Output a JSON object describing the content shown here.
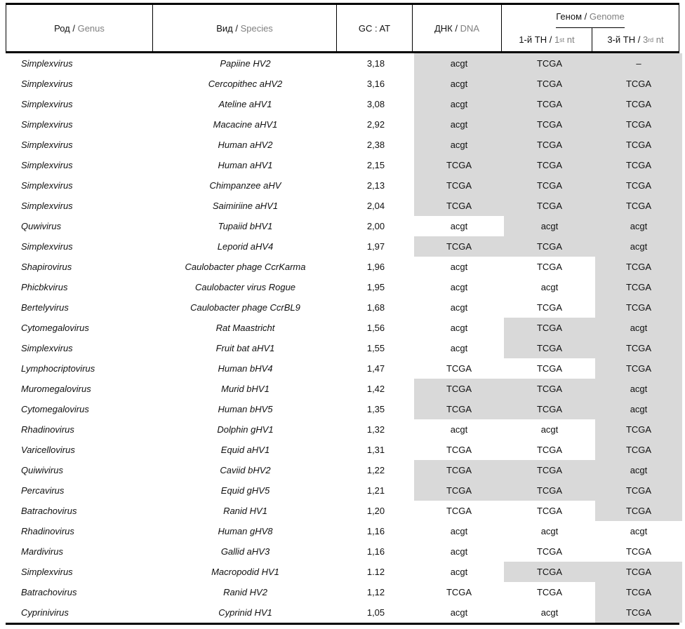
{
  "colors": {
    "shade": "#d9d9d9",
    "muted_text": "#808080",
    "text": "#111111"
  },
  "header": {
    "sep": " / ",
    "genus": {
      "ru": "Род",
      "en": "Genus"
    },
    "species": {
      "ru": "Вид",
      "en": "Species"
    },
    "gc_at": "GC : AT",
    "dna": {
      "ru": "ДНК",
      "en": "DNA"
    },
    "genome": {
      "ru": "Геном",
      "en": "Genome"
    },
    "nt1": {
      "ru": "1-й ТН",
      "en_num": "1",
      "en_sup": "st",
      "en_rest": " nt"
    },
    "nt3": {
      "ru": "3-й ТН",
      "en_num": "3",
      "en_sup": "rd",
      "en_rest": " nt"
    }
  },
  "rows": [
    {
      "genus": "Simplexvirus",
      "species": "Papiine HV2",
      "gc": "3,18",
      "dna": "acgt",
      "nt1": "TCGA",
      "nt3": "–",
      "shade": [
        true,
        true,
        true
      ]
    },
    {
      "genus": "Simplexvirus",
      "species": "Cercopithec aHV2",
      "gc": "3,16",
      "dna": "acgt",
      "nt1": "TCGA",
      "nt3": "TCGA",
      "shade": [
        true,
        true,
        true
      ]
    },
    {
      "genus": "Simplexvirus",
      "species": "Ateline aHV1",
      "gc": "3,08",
      "dna": "acgt",
      "nt1": "TCGA",
      "nt3": "TCGA",
      "shade": [
        true,
        true,
        true
      ]
    },
    {
      "genus": "Simplexvirus",
      "species": "Macacine aHV1",
      "gc": "2,92",
      "dna": "acgt",
      "nt1": "TCGA",
      "nt3": "TCGA",
      "shade": [
        true,
        true,
        true
      ]
    },
    {
      "genus": "Simplexvirus",
      "species": "Human aHV2",
      "gc": "2,38",
      "dna": "acgt",
      "nt1": "TCGA",
      "nt3": "TCGA",
      "shade": [
        true,
        true,
        true
      ]
    },
    {
      "genus": "Simplexvirus",
      "species": "Human aHV1",
      "gc": "2,15",
      "dna": "TCGA",
      "nt1": "TCGA",
      "nt3": "TCGA",
      "shade": [
        true,
        true,
        true
      ]
    },
    {
      "genus": "Simplexvirus",
      "species": "Chimpanzee aHV",
      "gc": "2,13",
      "dna": "TCGA",
      "nt1": "TCGA",
      "nt3": "TCGA",
      "shade": [
        true,
        true,
        true
      ]
    },
    {
      "genus": "Simplexvirus",
      "species": "Saimiriine aHV1",
      "gc": "2,04",
      "dna": "TCGA",
      "nt1": "TCGA",
      "nt3": "TCGA",
      "shade": [
        true,
        true,
        true
      ]
    },
    {
      "genus": "Quwivirus",
      "species": "Tupaiid bHV1",
      "gc": "2,00",
      "dna": "acgt",
      "nt1": "acgt",
      "nt3": "acgt",
      "shade": [
        false,
        true,
        true
      ]
    },
    {
      "genus": "Simplexvirus",
      "species": "Leporid aHV4",
      "gc": "1,97",
      "dna": "TCGA",
      "nt1": "TCGA",
      "nt3": "acgt",
      "shade": [
        true,
        true,
        true
      ]
    },
    {
      "genus": "Shapirovirus",
      "species": "Caulobacter phage CcrKarma",
      "gc": "1,96",
      "dna": "acgt",
      "nt1": "TCGA",
      "nt3": "TCGA",
      "shade": [
        false,
        false,
        true
      ]
    },
    {
      "genus": "Phicbkvirus",
      "species": "Caulobacter virus Rogue",
      "gc": "1,95",
      "dna": "acgt",
      "nt1": "acgt",
      "nt3": "TCGA",
      "shade": [
        false,
        false,
        true
      ]
    },
    {
      "genus": "Bertelyvirus",
      "species": "Caulobacter phage CcrBL9",
      "gc": "1,68",
      "dna": "acgt",
      "nt1": "TCGA",
      "nt3": "TCGA",
      "shade": [
        false,
        false,
        true
      ]
    },
    {
      "genus": "Cytomegalovirus",
      "species": "Rat Maastricht",
      "gc": "1,56",
      "dna": "acgt",
      "nt1": "TCGA",
      "nt3": "acgt",
      "shade": [
        false,
        true,
        true
      ]
    },
    {
      "genus": "Simplexvirus",
      "species": "Fruit bat aHV1",
      "gc": "1,55",
      "dna": "acgt",
      "nt1": "TCGA",
      "nt3": "TCGA",
      "shade": [
        false,
        true,
        true
      ]
    },
    {
      "genus": "Lymphocriptovirus",
      "species": "Human bHV4",
      "gc": "1,47",
      "dna": "TCGA",
      "nt1": "TCGA",
      "nt3": "TCGA",
      "shade": [
        false,
        false,
        true
      ]
    },
    {
      "genus": "Muromegalovirus",
      "species": "Murid bHV1",
      "gc": "1,42",
      "dna": "TCGA",
      "nt1": "TCGA",
      "nt3": "acgt",
      "shade": [
        true,
        true,
        true
      ]
    },
    {
      "genus": "Cytomegalovirus",
      "species": "Human bHV5",
      "gc": "1,35",
      "dna": "TCGA",
      "nt1": "TCGA",
      "nt3": "acgt",
      "shade": [
        true,
        true,
        true
      ]
    },
    {
      "genus": "Rhadinovirus",
      "species": "Dolphin gHV1",
      "gc": "1,32",
      "dna": "acgt",
      "nt1": "acgt",
      "nt3": "TCGA",
      "shade": [
        false,
        false,
        true
      ]
    },
    {
      "genus": "Varicellovirus",
      "species": "Equid aHV1",
      "gc": "1,31",
      "dna": "TCGA",
      "nt1": "TCGA",
      "nt3": "TCGA",
      "shade": [
        false,
        false,
        true
      ]
    },
    {
      "genus": "Quiwivirus",
      "species": "Caviid bHV2",
      "gc": "1,22",
      "dna": "TCGA",
      "nt1": "TCGA",
      "nt3": "acgt",
      "shade": [
        true,
        true,
        true
      ]
    },
    {
      "genus": "Percavirus",
      "species": "Equid gHV5",
      "gc": "1,21",
      "dna": "TCGA",
      "nt1": "TCGA",
      "nt3": "TCGA",
      "shade": [
        true,
        true,
        true
      ]
    },
    {
      "genus": "Batrachovirus",
      "species": "Ranid HV1",
      "gc": "1,20",
      "dna": "TCGA",
      "nt1": "TCGA",
      "nt3": "TCGA",
      "shade": [
        false,
        false,
        true
      ]
    },
    {
      "genus": "Rhadinovirus",
      "species": "Human gHV8",
      "gc": "1,16",
      "dna": "acgt",
      "nt1": "acgt",
      "nt3": "acgt",
      "shade": [
        false,
        false,
        false
      ]
    },
    {
      "genus": "Mardivirus",
      "species": "Gallid aHV3",
      "gc": "1,16",
      "dna": "acgt",
      "nt1": "TCGA",
      "nt3": "TCGA",
      "shade": [
        false,
        false,
        false
      ]
    },
    {
      "genus": "Simplexvirus",
      "species": "Macropodid HV1",
      "gc": "1.12",
      "dna": "acgt",
      "nt1": "TCGA",
      "nt3": "TCGA",
      "shade": [
        false,
        true,
        true
      ]
    },
    {
      "genus": "Batrachovirus",
      "species": "Ranid HV2",
      "gc": "1,12",
      "dna": "TCGA",
      "nt1": "TCGA",
      "nt3": "TCGA",
      "shade": [
        false,
        false,
        true
      ]
    },
    {
      "genus": "Cyprinivirus",
      "species": "Cyprinid HV1",
      "gc": "1,05",
      "dna": "acgt",
      "nt1": "acgt",
      "nt3": "TCGA",
      "shade": [
        false,
        false,
        true
      ]
    }
  ]
}
